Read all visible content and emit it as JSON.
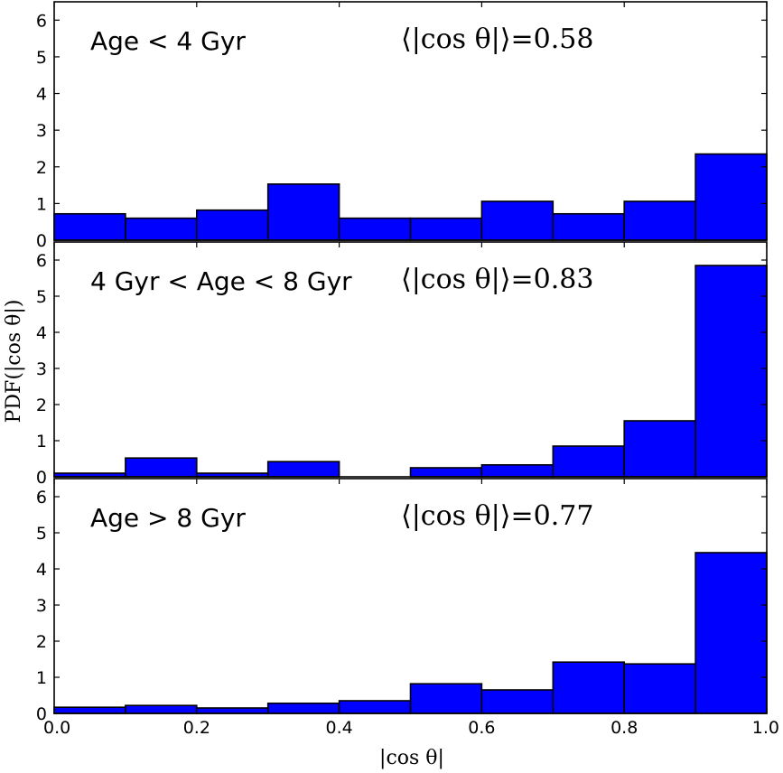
{
  "chart_data": {
    "type": "bar",
    "layout": "three vertically stacked histograms sharing the x axis",
    "bin_edges": [
      0.0,
      0.1,
      0.2,
      0.3,
      0.4,
      0.5,
      0.6,
      0.7,
      0.8,
      0.9,
      1.0
    ],
    "xlim": [
      0.0,
      1.0
    ],
    "ylim": [
      0,
      6.5
    ],
    "xlabel": "|cos θ|",
    "ylabel": "PDF(|cos θ|)",
    "x_ticks": [
      "0.0",
      "0.2",
      "0.4",
      "0.6",
      "0.8",
      "1.0"
    ],
    "y_ticks": [
      "0",
      "1",
      "2",
      "3",
      "4",
      "5",
      "6"
    ],
    "bar_color": "#0000ff",
    "grid": false,
    "panels": [
      {
        "label": "Age < 4 Gyr",
        "mean_text": "⟨|cos θ|⟩=0.58",
        "values": [
          0.72,
          0.6,
          0.82,
          1.53,
          0.6,
          0.6,
          1.06,
          0.72,
          1.06,
          2.35
        ]
      },
      {
        "label": "4 Gyr < Age < 8 Gyr",
        "mean_text": "⟨|cos θ|⟩=0.83",
        "values": [
          0.1,
          0.52,
          0.1,
          0.42,
          0.0,
          0.25,
          0.33,
          0.85,
          1.55,
          5.85
        ]
      },
      {
        "label": "Age > 8 Gyr",
        "mean_text": "⟨|cos θ|⟩=0.77",
        "values": [
          0.17,
          0.22,
          0.15,
          0.28,
          0.35,
          0.82,
          0.65,
          1.42,
          1.37,
          4.45
        ]
      }
    ]
  }
}
